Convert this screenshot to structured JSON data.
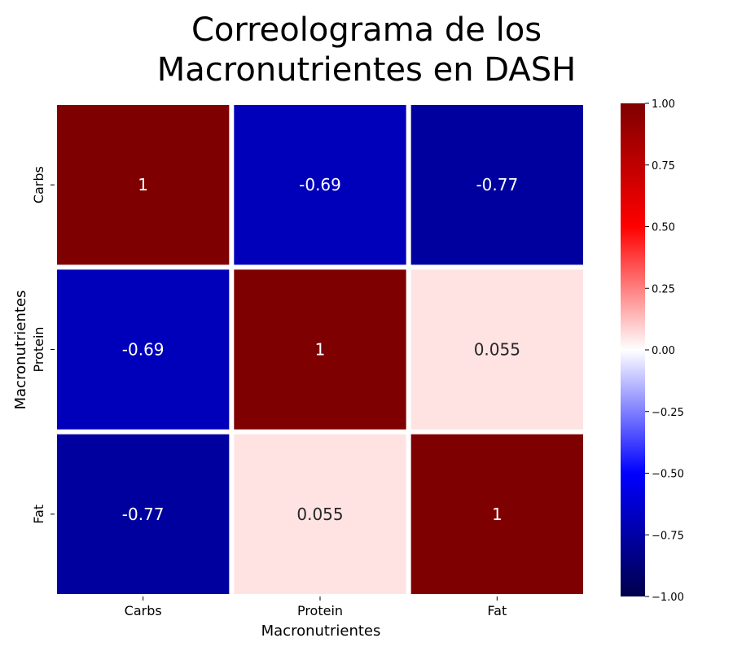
{
  "chart_data": {
    "type": "heatmap",
    "title_lines": [
      "Correolograma de los",
      "Macronutrientes en DASH"
    ],
    "xlabel": "Macronutrientes",
    "ylabel": "Macronutrientes",
    "categories": [
      "Carbs",
      "Protein",
      "Fat"
    ],
    "rows": [
      {
        "name": "Carbs",
        "values": [
          1,
          -0.69,
          -0.77
        ],
        "labels": [
          "1",
          "-0.69",
          "-0.77"
        ]
      },
      {
        "name": "Protein",
        "values": [
          -0.69,
          1,
          0.055
        ],
        "labels": [
          "-0.69",
          "1",
          "0.055"
        ]
      },
      {
        "name": "Fat",
        "values": [
          -0.77,
          0.055,
          1
        ],
        "labels": [
          "-0.77",
          "0.055",
          "1"
        ]
      }
    ],
    "colormap": "seismic",
    "colors": {
      "min": "#00004c",
      "low": "#0000ff",
      "mid": "#ffffff",
      "high": "#ff0000",
      "max": "#7f0000"
    },
    "vmin": -1,
    "vmax": 1,
    "colorbar_ticks": [
      1.0,
      0.75,
      0.5,
      0.25,
      0.0,
      -0.25,
      -0.5,
      -0.75,
      -1.0
    ],
    "colorbar_tick_labels": [
      "1.00",
      "0.75",
      "0.50",
      "0.25",
      "0.00",
      "−0.25",
      "−0.50",
      "−0.75",
      "−1.00"
    ]
  }
}
